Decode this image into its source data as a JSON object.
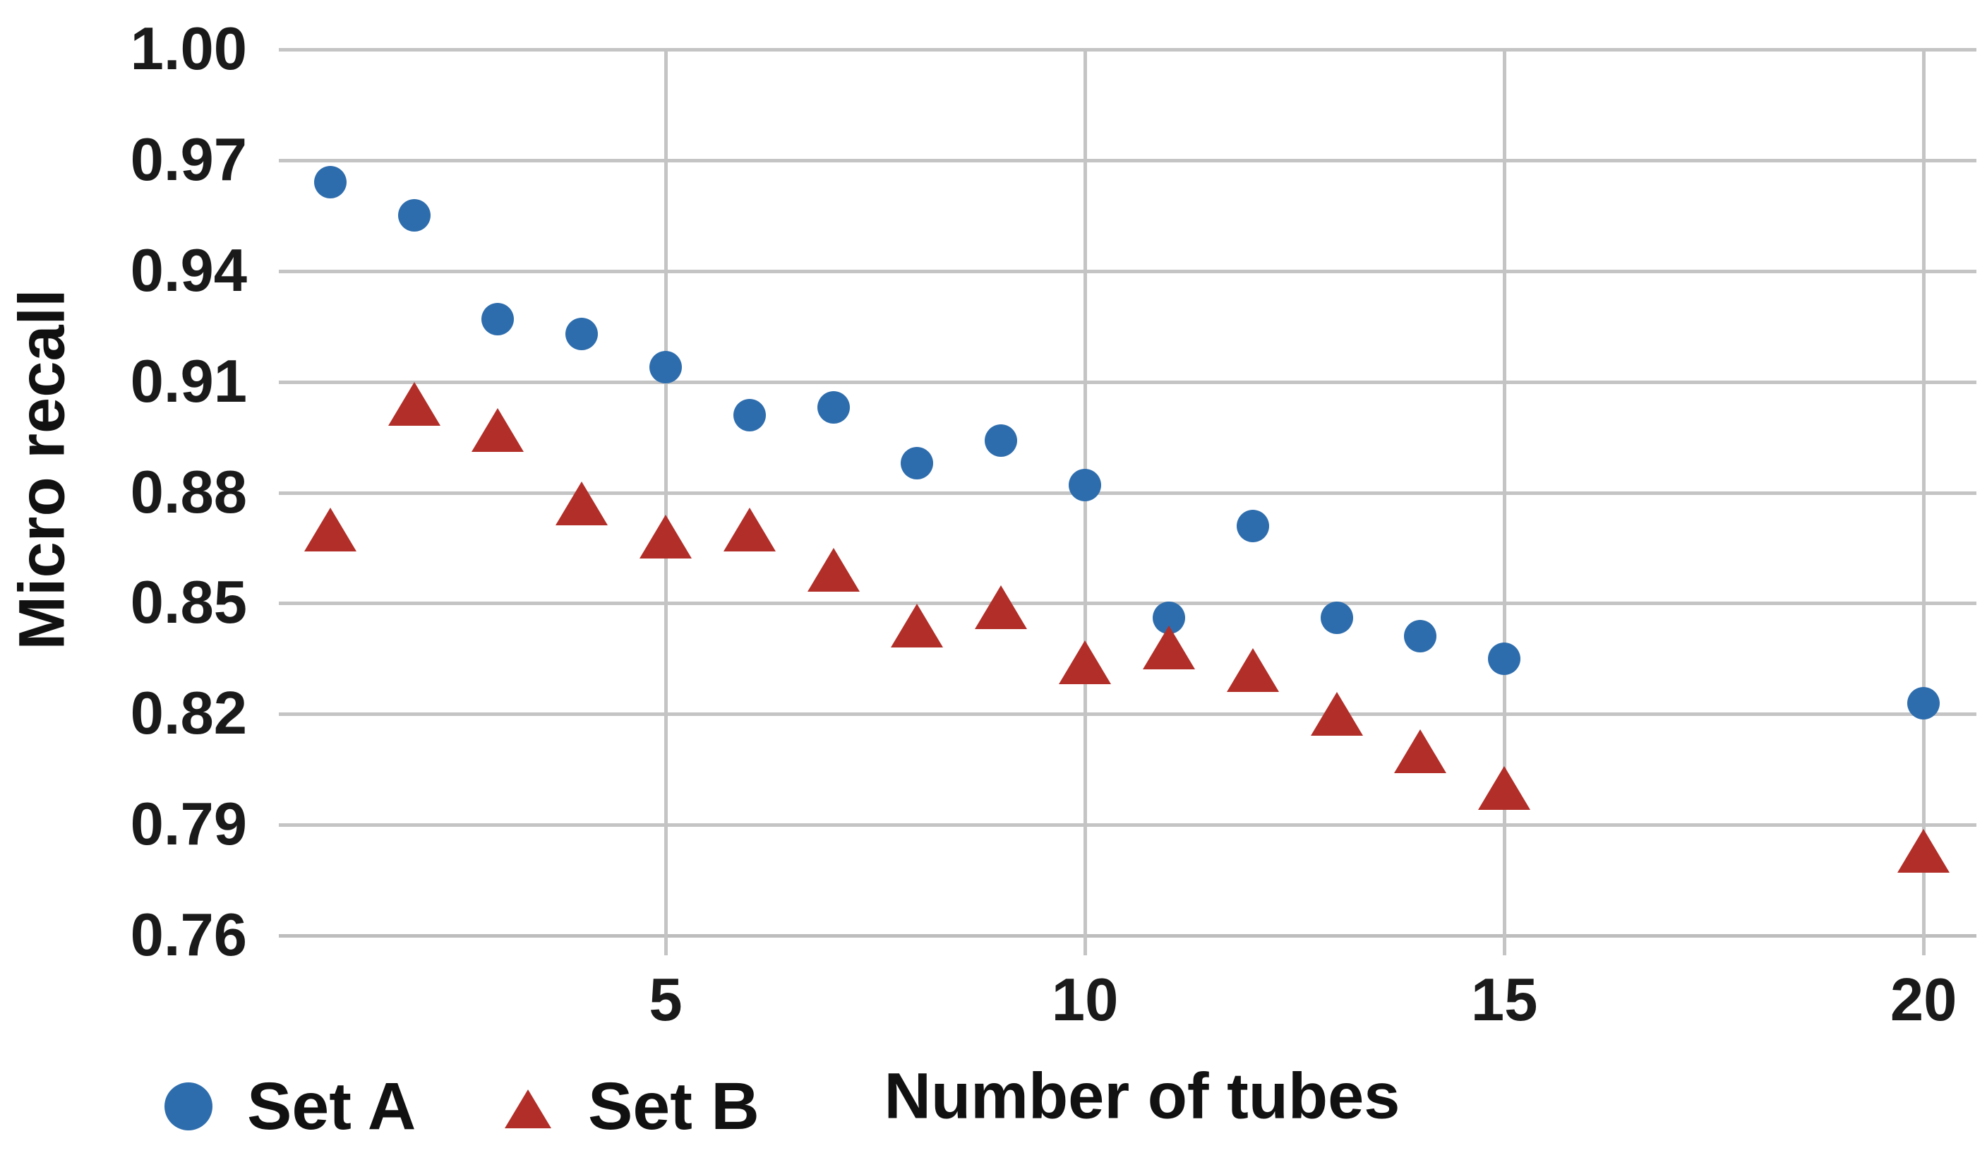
{
  "chart_data": {
    "type": "scatter",
    "title": "",
    "xlabel": "Number of tubes",
    "ylabel": "Micro recall",
    "xlim": [
      0.387,
      20.63
    ],
    "ylim": [
      0.76,
      1.0
    ],
    "grid": true,
    "legend_position": "bottom-left",
    "x_ticks": [
      {
        "v": 5,
        "label": "5"
      },
      {
        "v": 10,
        "label": "10"
      },
      {
        "v": 15,
        "label": "15"
      },
      {
        "v": 20,
        "label": "20"
      }
    ],
    "y_ticks": [
      {
        "v": 1.0,
        "label": "1.00"
      },
      {
        "v": 0.97,
        "label": "0.97"
      },
      {
        "v": 0.94,
        "label": "0.94"
      },
      {
        "v": 0.91,
        "label": "0.91"
      },
      {
        "v": 0.88,
        "label": "0.88"
      },
      {
        "v": 0.85,
        "label": "0.85"
      },
      {
        "v": 0.82,
        "label": "0.82"
      },
      {
        "v": 0.79,
        "label": "0.79"
      },
      {
        "v": 0.76,
        "label": "0.76"
      }
    ],
    "series": [
      {
        "name": "Set A",
        "marker": "circle",
        "color": "#2E6DAD",
        "x": [
          1,
          2,
          3,
          4,
          5,
          6,
          7,
          8,
          9,
          10,
          11,
          12,
          13,
          14,
          15,
          20
        ],
        "y": [
          0.964,
          0.955,
          0.927,
          0.923,
          0.914,
          0.901,
          0.903,
          0.888,
          0.894,
          0.882,
          0.846,
          0.871,
          0.846,
          0.841,
          0.835,
          0.823
        ]
      },
      {
        "name": "Set B",
        "marker": "triangle",
        "color": "#B22E28",
        "x": [
          1,
          2,
          3,
          4,
          5,
          6,
          7,
          8,
          9,
          10,
          11,
          12,
          13,
          14,
          15,
          20
        ],
        "y": [
          0.87,
          0.904,
          0.897,
          0.877,
          0.868,
          0.87,
          0.859,
          0.844,
          0.849,
          0.834,
          0.838,
          0.832,
          0.82,
          0.81,
          0.8,
          0.783
        ]
      }
    ]
  },
  "legend": {
    "set_a_label": "Set A",
    "set_b_label": "Set B"
  },
  "colors": {
    "set_a": "#2E6DAD",
    "set_b": "#B22E28",
    "gridline": "#C4C4C4",
    "text": "#111111"
  }
}
